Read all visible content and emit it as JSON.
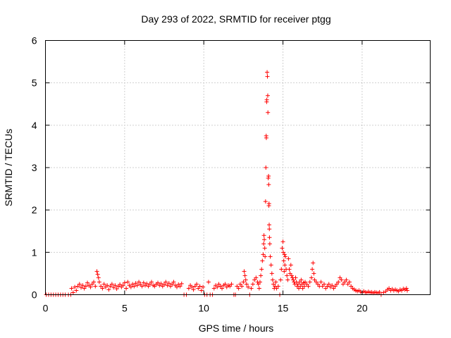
{
  "chart_data": {
    "type": "scatter",
    "title": "Day 293 of 2022, SRMTID for receiver ptgg",
    "xlabel": "GPS time / hours",
    "ylabel": "SRMTID / TECUs",
    "xlim": [
      0,
      24.3
    ],
    "ylim": [
      0,
      6
    ],
    "xticks": [
      0,
      5,
      10,
      15,
      20
    ],
    "yticks": [
      0,
      1,
      2,
      3,
      4,
      5,
      6
    ],
    "grid": true,
    "marker": "+",
    "color": "#ff0000",
    "series": [
      {
        "name": "SRMTID",
        "points": [
          [
            0.05,
            0.0
          ],
          [
            0.2,
            0.0
          ],
          [
            0.35,
            0.0
          ],
          [
            0.5,
            0.0
          ],
          [
            0.65,
            0.0
          ],
          [
            0.8,
            0.0
          ],
          [
            0.95,
            0.0
          ],
          [
            1.1,
            0.0
          ],
          [
            1.25,
            0.0
          ],
          [
            1.45,
            0.0
          ],
          [
            1.6,
            0.0
          ],
          [
            1.65,
            0.15
          ],
          [
            1.75,
            0.05
          ],
          [
            1.85,
            0.18
          ],
          [
            1.95,
            0.1
          ],
          [
            2.05,
            0.2
          ],
          [
            2.15,
            0.25
          ],
          [
            2.25,
            0.17
          ],
          [
            2.35,
            0.22
          ],
          [
            2.45,
            0.15
          ],
          [
            2.55,
            0.2
          ],
          [
            2.65,
            0.28
          ],
          [
            2.75,
            0.22
          ],
          [
            2.85,
            0.18
          ],
          [
            2.95,
            0.25
          ],
          [
            3.05,
            0.3
          ],
          [
            3.15,
            0.2
          ],
          [
            3.25,
            0.55
          ],
          [
            3.3,
            0.48
          ],
          [
            3.35,
            0.4
          ],
          [
            3.4,
            0.3
          ],
          [
            3.5,
            0.2
          ],
          [
            3.6,
            0.15
          ],
          [
            3.7,
            0.25
          ],
          [
            3.8,
            0.18
          ],
          [
            3.9,
            0.22
          ],
          [
            4.0,
            0.12
          ],
          [
            4.1,
            0.2
          ],
          [
            4.2,
            0.25
          ],
          [
            4.3,
            0.17
          ],
          [
            4.4,
            0.22
          ],
          [
            4.5,
            0.14
          ],
          [
            4.6,
            0.2
          ],
          [
            4.7,
            0.24
          ],
          [
            4.8,
            0.18
          ],
          [
            4.9,
            0.22
          ],
          [
            5.0,
            0.28
          ],
          [
            5.1,
            0.15
          ],
          [
            5.2,
            0.3
          ],
          [
            5.3,
            0.22
          ],
          [
            5.4,
            0.18
          ],
          [
            5.5,
            0.25
          ],
          [
            5.6,
            0.2
          ],
          [
            5.7,
            0.27
          ],
          [
            5.8,
            0.22
          ],
          [
            5.9,
            0.3
          ],
          [
            6.0,
            0.24
          ],
          [
            6.1,
            0.2
          ],
          [
            6.2,
            0.28
          ],
          [
            6.3,
            0.22
          ],
          [
            6.4,
            0.26
          ],
          [
            6.5,
            0.2
          ],
          [
            6.6,
            0.25
          ],
          [
            6.7,
            0.3
          ],
          [
            6.8,
            0.22
          ],
          [
            6.9,
            0.2
          ],
          [
            7.0,
            0.25
          ],
          [
            7.1,
            0.28
          ],
          [
            7.2,
            0.22
          ],
          [
            7.3,
            0.26
          ],
          [
            7.4,
            0.2
          ],
          [
            7.5,
            0.24
          ],
          [
            7.6,
            0.3
          ],
          [
            7.7,
            0.22
          ],
          [
            7.8,
            0.27
          ],
          [
            7.9,
            0.2
          ],
          [
            8.0,
            0.25
          ],
          [
            8.1,
            0.3
          ],
          [
            8.2,
            0.22
          ],
          [
            8.3,
            0.18
          ],
          [
            8.4,
            0.24
          ],
          [
            8.5,
            0.2
          ],
          [
            8.6,
            0.26
          ],
          [
            8.75,
            0.0
          ],
          [
            8.9,
            0.0
          ],
          [
            9.05,
            0.15
          ],
          [
            9.15,
            0.22
          ],
          [
            9.25,
            0.18
          ],
          [
            9.35,
            0.12
          ],
          [
            9.45,
            0.2
          ],
          [
            9.55,
            0.25
          ],
          [
            9.65,
            0.15
          ],
          [
            9.75,
            0.2
          ],
          [
            9.85,
            0.1
          ],
          [
            9.95,
            0.18
          ],
          [
            10.05,
            0.0
          ],
          [
            10.2,
            0.0
          ],
          [
            10.3,
            0.3
          ],
          [
            10.4,
            0.0
          ],
          [
            10.55,
            0.0
          ],
          [
            10.65,
            0.15
          ],
          [
            10.75,
            0.22
          ],
          [
            10.85,
            0.18
          ],
          [
            10.95,
            0.25
          ],
          [
            11.05,
            0.2
          ],
          [
            11.15,
            0.15
          ],
          [
            11.25,
            0.22
          ],
          [
            11.35,
            0.25
          ],
          [
            11.45,
            0.18
          ],
          [
            11.55,
            0.22
          ],
          [
            11.65,
            0.2
          ],
          [
            11.75,
            0.25
          ],
          [
            11.9,
            0.0
          ],
          [
            12.0,
            0.0
          ],
          [
            12.1,
            0.2
          ],
          [
            12.2,
            0.15
          ],
          [
            12.3,
            0.25
          ],
          [
            12.4,
            0.2
          ],
          [
            12.5,
            0.3
          ],
          [
            12.55,
            0.55
          ],
          [
            12.6,
            0.45
          ],
          [
            12.65,
            0.35
          ],
          [
            12.7,
            0.25
          ],
          [
            12.8,
            0.18
          ],
          [
            12.9,
            0.0
          ],
          [
            13.0,
            0.15
          ],
          [
            13.1,
            0.25
          ],
          [
            13.2,
            0.35
          ],
          [
            13.3,
            0.4
          ],
          [
            13.4,
            0.3
          ],
          [
            13.45,
            0.25
          ],
          [
            13.5,
            0.15
          ],
          [
            13.55,
            0.3
          ],
          [
            13.6,
            0.45
          ],
          [
            13.65,
            0.6
          ],
          [
            13.7,
            0.8
          ],
          [
            13.75,
            0.95
          ],
          [
            13.78,
            1.2
          ],
          [
            13.8,
            1.4
          ],
          [
            13.82,
            1.3
          ],
          [
            13.85,
            1.1
          ],
          [
            13.87,
            0.9
          ],
          [
            13.9,
            2.2
          ],
          [
            13.92,
            3.0
          ],
          [
            13.94,
            3.75
          ],
          [
            13.95,
            3.7
          ],
          [
            13.97,
            4.55
          ],
          [
            13.98,
            4.6
          ],
          [
            14.0,
            5.25
          ],
          [
            14.02,
            5.15
          ],
          [
            14.04,
            4.7
          ],
          [
            14.05,
            4.3
          ],
          [
            14.07,
            2.75
          ],
          [
            14.09,
            2.8
          ],
          [
            14.1,
            2.6
          ],
          [
            14.11,
            2.1
          ],
          [
            14.12,
            2.15
          ],
          [
            14.13,
            1.65
          ],
          [
            14.14,
            1.55
          ],
          [
            14.15,
            1.35
          ],
          [
            14.17,
            1.2
          ],
          [
            14.2,
            0.9
          ],
          [
            14.25,
            0.7
          ],
          [
            14.3,
            0.5
          ],
          [
            14.35,
            0.35
          ],
          [
            14.4,
            0.25
          ],
          [
            14.45,
            0.15
          ],
          [
            14.5,
            0.2
          ],
          [
            14.55,
            0.3
          ],
          [
            14.6,
            0.15
          ],
          [
            14.7,
            0.2
          ],
          [
            14.8,
            0.0
          ],
          [
            14.85,
            0.35
          ],
          [
            14.9,
            0.6
          ],
          [
            14.95,
            1.1
          ],
          [
            15.0,
            1.25
          ],
          [
            15.02,
            1.0
          ],
          [
            15.05,
            0.8
          ],
          [
            15.08,
            0.55
          ],
          [
            15.1,
            0.95
          ],
          [
            15.12,
            0.7
          ],
          [
            15.15,
            0.9
          ],
          [
            15.2,
            0.6
          ],
          [
            15.25,
            0.45
          ],
          [
            15.3,
            0.35
          ],
          [
            15.35,
            0.85
          ],
          [
            15.4,
            0.6
          ],
          [
            15.45,
            0.5
          ],
          [
            15.5,
            0.7
          ],
          [
            15.55,
            0.45
          ],
          [
            15.6,
            0.4
          ],
          [
            15.65,
            0.35
          ],
          [
            15.7,
            0.3
          ],
          [
            15.75,
            0.25
          ],
          [
            15.8,
            0.4
          ],
          [
            15.85,
            0.3
          ],
          [
            15.9,
            0.2
          ],
          [
            15.95,
            0.25
          ],
          [
            16.0,
            0.15
          ],
          [
            16.05,
            0.3
          ],
          [
            16.1,
            0.2
          ],
          [
            16.15,
            0.35
          ],
          [
            16.2,
            0.25
          ],
          [
            16.25,
            0.15
          ],
          [
            16.3,
            0.28
          ],
          [
            16.35,
            0.2
          ],
          [
            16.4,
            0.3
          ],
          [
            16.5,
            0.25
          ],
          [
            16.6,
            0.2
          ],
          [
            16.7,
            0.3
          ],
          [
            16.8,
            0.4
          ],
          [
            16.85,
            0.6
          ],
          [
            16.9,
            0.75
          ],
          [
            16.95,
            0.5
          ],
          [
            17.0,
            0.35
          ],
          [
            17.1,
            0.3
          ],
          [
            17.2,
            0.25
          ],
          [
            17.3,
            0.2
          ],
          [
            17.4,
            0.3
          ],
          [
            17.5,
            0.2
          ],
          [
            17.6,
            0.25
          ],
          [
            17.7,
            0.15
          ],
          [
            17.8,
            0.2
          ],
          [
            17.9,
            0.25
          ],
          [
            18.0,
            0.18
          ],
          [
            18.1,
            0.22
          ],
          [
            18.2,
            0.15
          ],
          [
            18.3,
            0.2
          ],
          [
            18.4,
            0.25
          ],
          [
            18.5,
            0.3
          ],
          [
            18.6,
            0.4
          ],
          [
            18.7,
            0.35
          ],
          [
            18.8,
            0.25
          ],
          [
            18.9,
            0.3
          ],
          [
            19.0,
            0.35
          ],
          [
            19.1,
            0.25
          ],
          [
            19.2,
            0.3
          ],
          [
            19.3,
            0.2
          ],
          [
            19.4,
            0.15
          ],
          [
            19.5,
            0.12
          ],
          [
            19.6,
            0.1
          ],
          [
            19.7,
            0.08
          ],
          [
            19.8,
            0.1
          ],
          [
            19.9,
            0.07
          ],
          [
            20.0,
            0.05
          ],
          [
            20.1,
            0.08
          ],
          [
            20.2,
            0.06
          ],
          [
            20.3,
            0.05
          ],
          [
            20.4,
            0.07
          ],
          [
            20.5,
            0.05
          ],
          [
            20.6,
            0.06
          ],
          [
            20.7,
            0.04
          ],
          [
            20.8,
            0.06
          ],
          [
            20.9,
            0.05
          ],
          [
            21.0,
            0.04
          ],
          [
            21.1,
            0.06
          ],
          [
            21.2,
            0.0
          ],
          [
            21.35,
            0.05
          ],
          [
            21.5,
            0.08
          ],
          [
            21.6,
            0.12
          ],
          [
            21.7,
            0.15
          ],
          [
            21.8,
            0.1
          ],
          [
            21.9,
            0.13
          ],
          [
            22.0,
            0.1
          ],
          [
            22.1,
            0.12
          ],
          [
            22.2,
            0.1
          ],
          [
            22.3,
            0.08
          ],
          [
            22.4,
            0.12
          ],
          [
            22.5,
            0.1
          ],
          [
            22.6,
            0.14
          ],
          [
            22.7,
            0.12
          ],
          [
            22.8,
            0.15
          ],
          [
            22.85,
            0.1
          ]
        ]
      }
    ]
  }
}
